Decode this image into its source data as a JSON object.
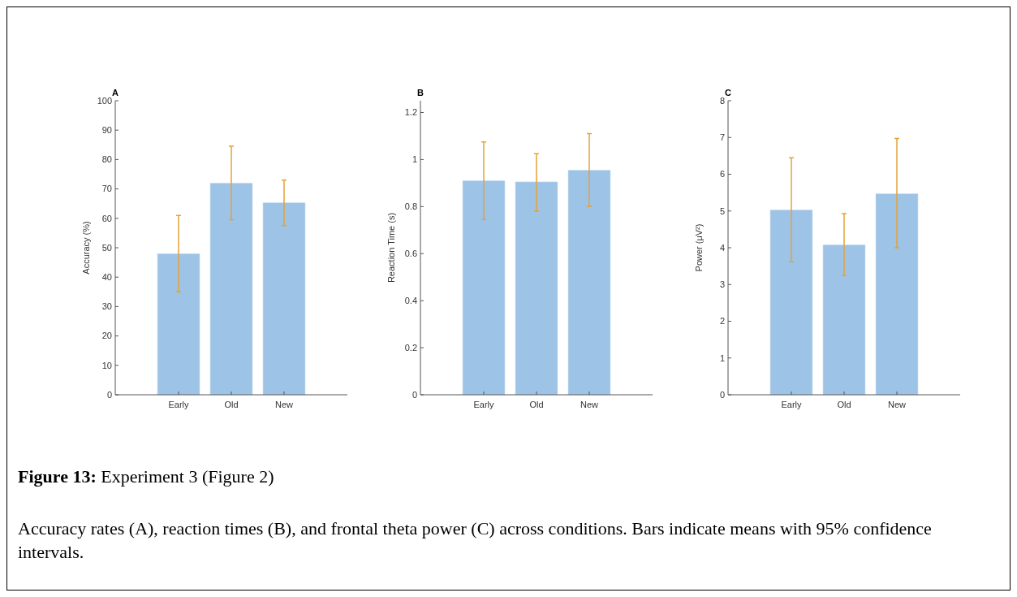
{
  "chart_data": [
    {
      "type": "bar",
      "title": "A",
      "ylabel": "Accuracy (%)",
      "categories": [
        "Early",
        "Old",
        "New"
      ],
      "values": [
        48,
        72,
        65.3
      ],
      "color": "#9dc3e6",
      "errors": [
        [
          35,
          61
        ],
        [
          59.5,
          84.5
        ],
        [
          57.5,
          73
        ]
      ],
      "ylim": [
        0,
        100
      ],
      "yticks": [
        0,
        10,
        20,
        30,
        40,
        50,
        60,
        70,
        80,
        90,
        100
      ],
      "grid": false
    },
    {
      "type": "bar",
      "title": "B",
      "ylabel": "Reaction Time (s)",
      "categories": [
        "Early",
        "Old",
        "New"
      ],
      "values": [
        0.91,
        0.905,
        0.955
      ],
      "color": "#9dc3e6",
      "errors": [
        [
          0.745,
          1.075
        ],
        [
          0.78,
          1.025
        ],
        [
          0.8,
          1.11
        ]
      ],
      "ylim": [
        0,
        1.25
      ],
      "yticks": [
        0,
        0.2,
        0.4,
        0.6,
        0.8,
        1,
        1.2
      ],
      "grid": false
    },
    {
      "type": "bar",
      "title": "C",
      "ylabel": "Power (μV²)",
      "categories": [
        "Early",
        "Old",
        "New"
      ],
      "values": [
        5.03,
        4.08,
        5.47
      ],
      "color": "#9dc3e6",
      "errors": [
        [
          3.62,
          6.45
        ],
        [
          3.25,
          4.93
        ],
        [
          4.0,
          6.97
        ]
      ],
      "ylim": [
        0,
        8
      ],
      "yticks": [
        0,
        1,
        2,
        3,
        4,
        5,
        6,
        7,
        8
      ],
      "grid": false
    },
    {
      "type": "other",
      "title": "Figure 13: Experiment 3 (Figure 2)",
      "annotations": [
        "Accuracy rates (A), reaction times (B), and frontal theta power (C) across conditions. Bars indicate means with 95% confidence intervals."
      ]
    }
  ]
}
